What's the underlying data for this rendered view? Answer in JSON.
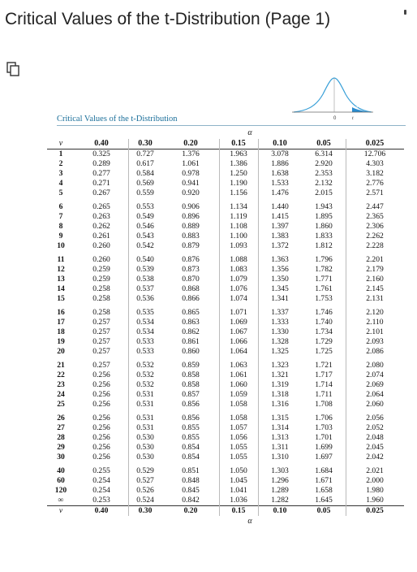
{
  "title": "Critical Values of the t-Distribution (Page 1)",
  "caption": "Critical Values of the t-Distribution",
  "alpha_symbol": "α",
  "df_symbol": "ν",
  "icons": {
    "copy": "copy-icon",
    "distribution": "t-distribution-curve-icon"
  },
  "figure": {
    "zero_label": "0",
    "alpha_label": "α",
    "t_label": "t"
  },
  "colors": {
    "caption": "#1b6f9a",
    "curve": "#3aa0d8",
    "tail": "#2a8ccf"
  },
  "alpha_levels": [
    "0.40",
    "0.30",
    "0.20",
    "0.15",
    "0.10",
    "0.05",
    "0.025"
  ],
  "table": {
    "groups": [
      [
        [
          "1",
          "0.325",
          "0.727",
          "1.376",
          "1.963",
          "3.078",
          "6.314",
          "12.706"
        ],
        [
          "2",
          "0.289",
          "0.617",
          "1.061",
          "1.386",
          "1.886",
          "2.920",
          "4.303"
        ],
        [
          "3",
          "0.277",
          "0.584",
          "0.978",
          "1.250",
          "1.638",
          "2.353",
          "3.182"
        ],
        [
          "4",
          "0.271",
          "0.569",
          "0.941",
          "1.190",
          "1.533",
          "2.132",
          "2.776"
        ],
        [
          "5",
          "0.267",
          "0.559",
          "0.920",
          "1.156",
          "1.476",
          "2.015",
          "2.571"
        ]
      ],
      [
        [
          "6",
          "0.265",
          "0.553",
          "0.906",
          "1.134",
          "1.440",
          "1.943",
          "2.447"
        ],
        [
          "7",
          "0.263",
          "0.549",
          "0.896",
          "1.119",
          "1.415",
          "1.895",
          "2.365"
        ],
        [
          "8",
          "0.262",
          "0.546",
          "0.889",
          "1.108",
          "1.397",
          "1.860",
          "2.306"
        ],
        [
          "9",
          "0.261",
          "0.543",
          "0.883",
          "1.100",
          "1.383",
          "1.833",
          "2.262"
        ],
        [
          "10",
          "0.260",
          "0.542",
          "0.879",
          "1.093",
          "1.372",
          "1.812",
          "2.228"
        ]
      ],
      [
        [
          "11",
          "0.260",
          "0.540",
          "0.876",
          "1.088",
          "1.363",
          "1.796",
          "2.201"
        ],
        [
          "12",
          "0.259",
          "0.539",
          "0.873",
          "1.083",
          "1.356",
          "1.782",
          "2.179"
        ],
        [
          "13",
          "0.259",
          "0.538",
          "0.870",
          "1.079",
          "1.350",
          "1.771",
          "2.160"
        ],
        [
          "14",
          "0.258",
          "0.537",
          "0.868",
          "1.076",
          "1.345",
          "1.761",
          "2.145"
        ],
        [
          "15",
          "0.258",
          "0.536",
          "0.866",
          "1.074",
          "1.341",
          "1.753",
          "2.131"
        ]
      ],
      [
        [
          "16",
          "0.258",
          "0.535",
          "0.865",
          "1.071",
          "1.337",
          "1.746",
          "2.120"
        ],
        [
          "17",
          "0.257",
          "0.534",
          "0.863",
          "1.069",
          "1.333",
          "1.740",
          "2.110"
        ],
        [
          "18",
          "0.257",
          "0.534",
          "0.862",
          "1.067",
          "1.330",
          "1.734",
          "2.101"
        ],
        [
          "19",
          "0.257",
          "0.533",
          "0.861",
          "1.066",
          "1.328",
          "1.729",
          "2.093"
        ],
        [
          "20",
          "0.257",
          "0.533",
          "0.860",
          "1.064",
          "1.325",
          "1.725",
          "2.086"
        ]
      ],
      [
        [
          "21",
          "0.257",
          "0.532",
          "0.859",
          "1.063",
          "1.323",
          "1.721",
          "2.080"
        ],
        [
          "22",
          "0.256",
          "0.532",
          "0.858",
          "1.061",
          "1.321",
          "1.717",
          "2.074"
        ],
        [
          "23",
          "0.256",
          "0.532",
          "0.858",
          "1.060",
          "1.319",
          "1.714",
          "2.069"
        ],
        [
          "24",
          "0.256",
          "0.531",
          "0.857",
          "1.059",
          "1.318",
          "1.711",
          "2.064"
        ],
        [
          "25",
          "0.256",
          "0.531",
          "0.856",
          "1.058",
          "1.316",
          "1.708",
          "2.060"
        ]
      ],
      [
        [
          "26",
          "0.256",
          "0.531",
          "0.856",
          "1.058",
          "1.315",
          "1.706",
          "2.056"
        ],
        [
          "27",
          "0.256",
          "0.531",
          "0.855",
          "1.057",
          "1.314",
          "1.703",
          "2.052"
        ],
        [
          "28",
          "0.256",
          "0.530",
          "0.855",
          "1.056",
          "1.313",
          "1.701",
          "2.048"
        ],
        [
          "29",
          "0.256",
          "0.530",
          "0.854",
          "1.055",
          "1.311",
          "1.699",
          "2.045"
        ],
        [
          "30",
          "0.256",
          "0.530",
          "0.854",
          "1.055",
          "1.310",
          "1.697",
          "2.042"
        ]
      ],
      [
        [
          "40",
          "0.255",
          "0.529",
          "0.851",
          "1.050",
          "1.303",
          "1.684",
          "2.021"
        ],
        [
          "60",
          "0.254",
          "0.527",
          "0.848",
          "1.045",
          "1.296",
          "1.671",
          "2.000"
        ],
        [
          "120",
          "0.254",
          "0.526",
          "0.845",
          "1.041",
          "1.289",
          "1.658",
          "1.980"
        ],
        [
          "∞",
          "0.253",
          "0.524",
          "0.842",
          "1.036",
          "1.282",
          "1.645",
          "1.960"
        ]
      ]
    ]
  }
}
